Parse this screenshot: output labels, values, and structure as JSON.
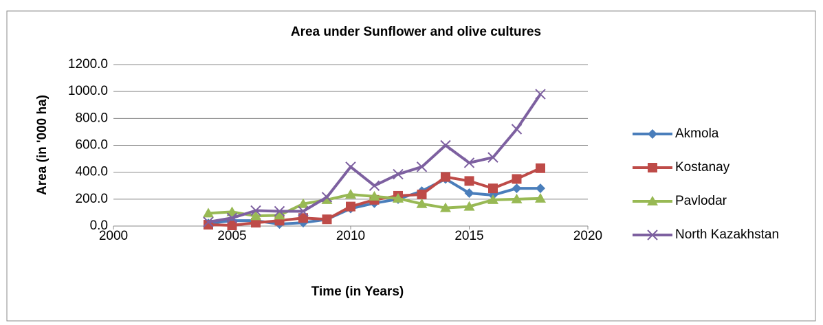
{
  "chart_data": {
    "type": "line",
    "title": "Area under Sunflower and olive cultures",
    "x_label": "Time (in Years)",
    "y_label": "Area (in '000 ha)",
    "x": [
      2004,
      2005,
      2006,
      2007,
      2008,
      2009,
      2010,
      2011,
      2012,
      2013,
      2014,
      2015,
      2016,
      2017,
      2018
    ],
    "series": [
      {
        "name": "Akmola",
        "color": "#4a7ebb",
        "marker": "diamond",
        "values": [
          20,
          40,
          40,
          15,
          25,
          50,
          130,
          170,
          200,
          260,
          350,
          245,
          230,
          280,
          280
        ]
      },
      {
        "name": "Kostanay",
        "color": "#be4b48",
        "marker": "square",
        "values": [
          10,
          5,
          25,
          40,
          60,
          50,
          145,
          195,
          225,
          235,
          365,
          335,
          280,
          350,
          430
        ]
      },
      {
        "name": "Pavlodar",
        "color": "#98b954",
        "marker": "triangle",
        "values": [
          95,
          105,
          75,
          80,
          165,
          195,
          235,
          220,
          205,
          165,
          135,
          145,
          195,
          200,
          205
        ]
      },
      {
        "name": "North Kazakhstan",
        "color": "#7d60a0",
        "marker": "x",
        "values": [
          30,
          60,
          115,
          110,
          110,
          215,
          440,
          300,
          385,
          440,
          600,
          470,
          510,
          720,
          980
        ]
      }
    ],
    "xlim": [
      2000,
      2020
    ],
    "xticks": [
      2000,
      2005,
      2010,
      2015,
      2020
    ],
    "ylim": [
      0,
      1200
    ],
    "yticks": [
      {
        "value": 0,
        "label": "0.0"
      },
      {
        "value": 200,
        "label": "200.0"
      },
      {
        "value": 400,
        "label": "400.0"
      },
      {
        "value": 600,
        "label": "600.0"
      },
      {
        "value": 800,
        "label": "800.0"
      },
      {
        "value": 1000,
        "label": "1000.0"
      },
      {
        "value": 1200,
        "label": "1200.0"
      }
    ],
    "grid": true,
    "legend": "right"
  }
}
